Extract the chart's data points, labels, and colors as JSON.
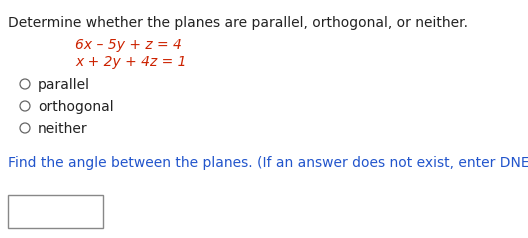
{
  "title": "Determine whether the planes are parallel, orthogonal, or neither.",
  "eq1": "6x – 5y + z = 4",
  "eq2": "x + 2y + 4z = 1",
  "eq_color": "#cc2200",
  "text_color": "#222222",
  "circle_color": "#666666",
  "find_color": "#2255cc",
  "find_text": "Find the angle between the planes. (If an answer does not exist, enter DNE.)",
  "options": [
    "parallel",
    "orthogonal",
    "neither"
  ],
  "bg_color": "#ffffff",
  "fontsize": 10.0
}
